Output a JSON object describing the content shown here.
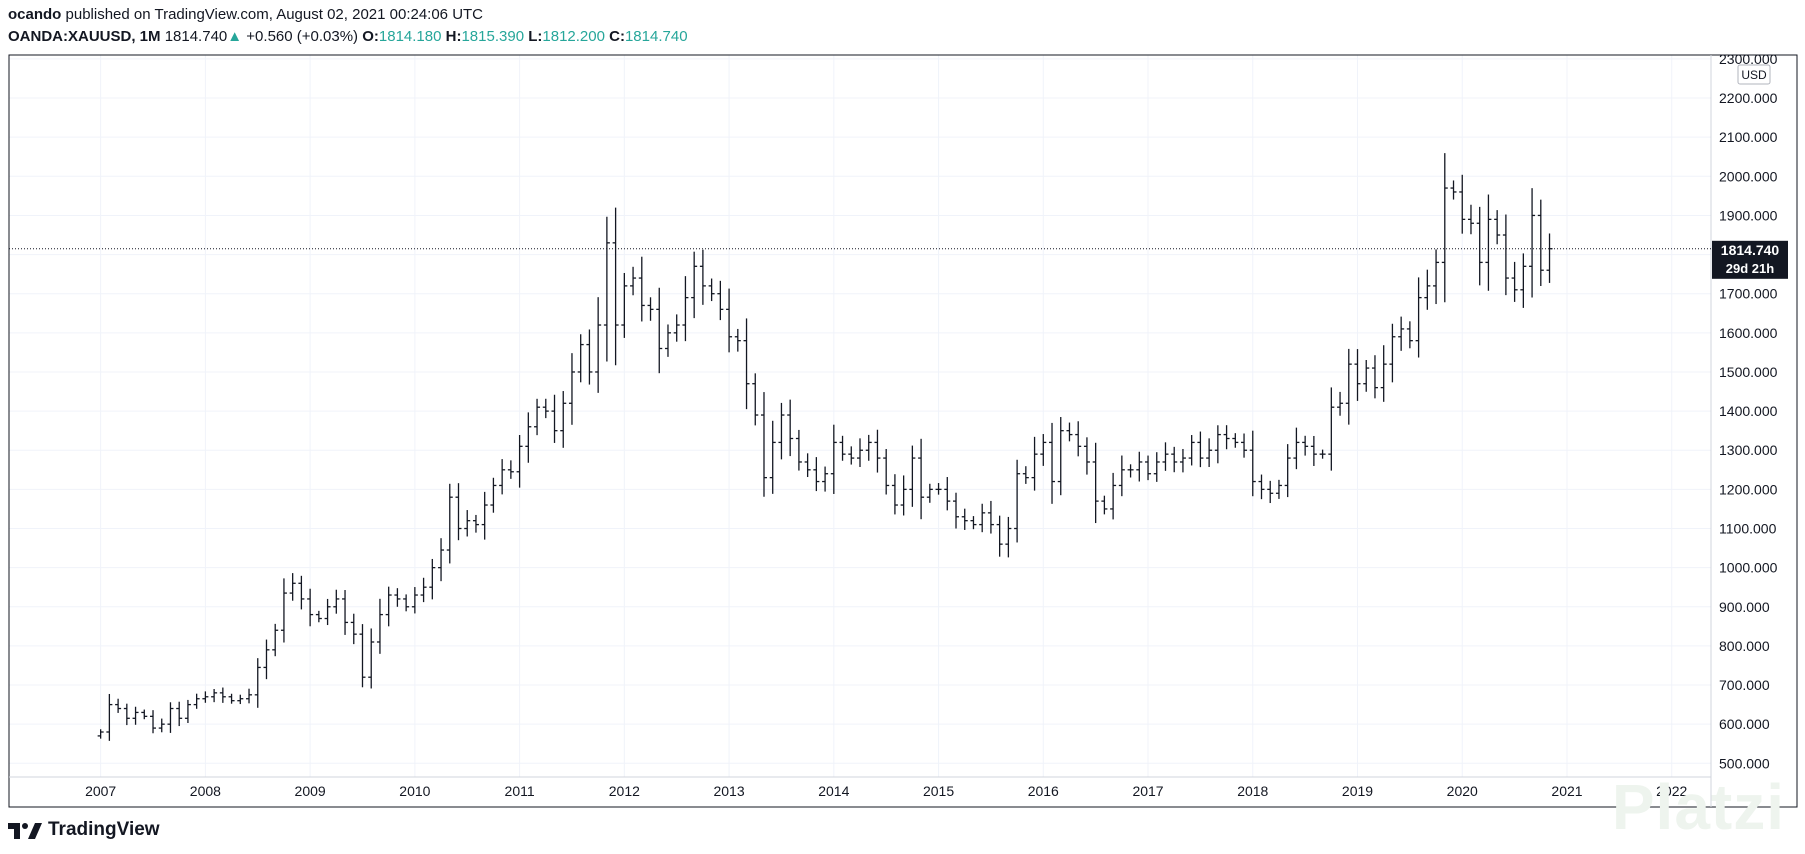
{
  "header": {
    "author": "ocando",
    "published": "published on TradingView.com, August 02, 2021 00:24:06 UTC",
    "symbol": "OANDA:XAUUSD, 1M",
    "last": "1814.740",
    "change_arrow": "▲",
    "change": "+0.560 (+0.03%)",
    "o_label": "O:",
    "o": "1814.180",
    "h_label": "H:",
    "h": "1815.390",
    "l_label": "L:",
    "l": "1812.200",
    "c_label": "C:",
    "c": "1814.740"
  },
  "currency_label": "USD",
  "last_price_label": "1814.740",
  "countdown_label": "29d 21h",
  "brand": "TradingView",
  "watermark": "Platzi",
  "colors": {
    "up": "#26a69a",
    "bar": "#131722",
    "grid": "#f0f3fa",
    "price_tag": "#131722"
  },
  "chart_data": {
    "type": "ohlc",
    "symbol": "OANDA:XAUUSD",
    "interval": "1M",
    "yticks": [
      500,
      600,
      700,
      800,
      900,
      1000,
      1100,
      1200,
      1300,
      1400,
      1500,
      1600,
      1700,
      1800,
      1900,
      2000,
      2100,
      2200,
      2300
    ],
    "ytick_labels": [
      "500.000",
      "600.000",
      "700.000",
      "800.000",
      "900.000",
      "1000.000",
      "1100.000",
      "1200.000",
      "1300.000",
      "1400.000",
      "1500.000",
      "1600.000",
      "1700.000",
      "1800.000",
      "1900.000",
      "2000.000",
      "2100.000",
      "2200.000",
      "2300.000"
    ],
    "xticks": [
      "2007",
      "2008",
      "2009",
      "2010",
      "2011",
      "2012",
      "2013",
      "2014",
      "2015",
      "2016",
      "2017",
      "2018",
      "2019",
      "2020",
      "2021",
      "2022"
    ],
    "ylim": [
      465,
      2310
    ],
    "xlim_months": [
      -10.5,
      184.5
    ],
    "last_price": 1814.74,
    "grid": true,
    "x_start": "2006-03",
    "close_path": [
      [
        0,
        580
      ],
      [
        1,
        650
      ],
      [
        2,
        640
      ],
      [
        3,
        615
      ],
      [
        4,
        630
      ],
      [
        5,
        620
      ],
      [
        6,
        590
      ],
      [
        7,
        600
      ],
      [
        8,
        640
      ],
      [
        9,
        615
      ],
      [
        10,
        650
      ],
      [
        11,
        665
      ],
      [
        12,
        670
      ],
      [
        13,
        680
      ],
      [
        14,
        670
      ],
      [
        15,
        660
      ],
      [
        16,
        665
      ],
      [
        17,
        675
      ],
      [
        18,
        745
      ],
      [
        19,
        790
      ],
      [
        20,
        840
      ],
      [
        21,
        935
      ],
      [
        22,
        960
      ],
      [
        23,
        920
      ],
      [
        24,
        880
      ],
      [
        25,
        870
      ],
      [
        26,
        900
      ],
      [
        27,
        920
      ],
      [
        28,
        860
      ],
      [
        29,
        830
      ],
      [
        30,
        720
      ],
      [
        31,
        810
      ],
      [
        32,
        880
      ],
      [
        33,
        930
      ],
      [
        34,
        920
      ],
      [
        35,
        900
      ],
      [
        36,
        930
      ],
      [
        37,
        950
      ],
      [
        38,
        1000
      ],
      [
        39,
        1045
      ],
      [
        40,
        1180
      ],
      [
        41,
        1100
      ],
      [
        42,
        1120
      ],
      [
        43,
        1110
      ],
      [
        44,
        1160
      ],
      [
        45,
        1210
      ],
      [
        46,
        1250
      ],
      [
        47,
        1245
      ],
      [
        48,
        1310
      ],
      [
        49,
        1360
      ],
      [
        50,
        1410
      ],
      [
        51,
        1400
      ],
      [
        52,
        1350
      ],
      [
        53,
        1420
      ],
      [
        54,
        1500
      ],
      [
        55,
        1570
      ],
      [
        56,
        1500
      ],
      [
        57,
        1620
      ],
      [
        58,
        1830
      ],
      [
        59,
        1620
      ],
      [
        60,
        1720
      ],
      [
        61,
        1740
      ],
      [
        62,
        1670
      ],
      [
        63,
        1660
      ],
      [
        64,
        1560
      ],
      [
        65,
        1600
      ],
      [
        66,
        1620
      ],
      [
        67,
        1690
      ],
      [
        68,
        1770
      ],
      [
        69,
        1720
      ],
      [
        70,
        1700
      ],
      [
        71,
        1660
      ],
      [
        72,
        1590
      ],
      [
        73,
        1580
      ],
      [
        74,
        1470
      ],
      [
        75,
        1390
      ],
      [
        76,
        1230
      ],
      [
        77,
        1320
      ],
      [
        78,
        1390
      ],
      [
        79,
        1330
      ],
      [
        80,
        1270
      ],
      [
        81,
        1250
      ],
      [
        82,
        1220
      ],
      [
        83,
        1240
      ],
      [
        84,
        1320
      ],
      [
        85,
        1290
      ],
      [
        86,
        1280
      ],
      [
        87,
        1300
      ],
      [
        88,
        1320
      ],
      [
        89,
        1280
      ],
      [
        90,
        1210
      ],
      [
        91,
        1160
      ],
      [
        92,
        1200
      ],
      [
        93,
        1280
      ],
      [
        94,
        1180
      ],
      [
        95,
        1200
      ],
      [
        96,
        1200
      ],
      [
        97,
        1170
      ],
      [
        98,
        1130
      ],
      [
        99,
        1120
      ],
      [
        100,
        1110
      ],
      [
        101,
        1140
      ],
      [
        102,
        1110
      ],
      [
        103,
        1060
      ],
      [
        104,
        1100
      ],
      [
        105,
        1240
      ],
      [
        106,
        1230
      ],
      [
        107,
        1290
      ],
      [
        108,
        1320
      ],
      [
        109,
        1220
      ],
      [
        110,
        1350
      ],
      [
        111,
        1340
      ],
      [
        112,
        1310
      ],
      [
        113,
        1270
      ],
      [
        114,
        1170
      ],
      [
        115,
        1150
      ],
      [
        116,
        1210
      ],
      [
        117,
        1250
      ],
      [
        118,
        1250
      ],
      [
        119,
        1270
      ],
      [
        120,
        1240
      ],
      [
        121,
        1270
      ],
      [
        122,
        1290
      ],
      [
        123,
        1270
      ],
      [
        124,
        1280
      ],
      [
        125,
        1320
      ],
      [
        126,
        1280
      ],
      [
        127,
        1300
      ],
      [
        128,
        1340
      ],
      [
        129,
        1330
      ],
      [
        130,
        1320
      ],
      [
        131,
        1300
      ],
      [
        132,
        1220
      ],
      [
        133,
        1200
      ],
      [
        134,
        1190
      ],
      [
        135,
        1210
      ],
      [
        136,
        1280
      ],
      [
        137,
        1320
      ],
      [
        138,
        1310
      ],
      [
        139,
        1290
      ],
      [
        140,
        1290
      ],
      [
        141,
        1410
      ],
      [
        142,
        1420
      ],
      [
        143,
        1520
      ],
      [
        144,
        1470
      ],
      [
        145,
        1510
      ],
      [
        146,
        1460
      ],
      [
        147,
        1520
      ],
      [
        148,
        1590
      ],
      [
        149,
        1610
      ],
      [
        150,
        1580
      ],
      [
        151,
        1690
      ],
      [
        152,
        1720
      ],
      [
        153,
        1780
      ],
      [
        154,
        1970
      ],
      [
        155,
        1960
      ],
      [
        156,
        1890
      ],
      [
        157,
        1880
      ],
      [
        158,
        1780
      ],
      [
        159,
        1890
      ],
      [
        160,
        1850
      ],
      [
        161,
        1740
      ],
      [
        162,
        1710
      ],
      [
        163,
        1770
      ],
      [
        164,
        1900
      ],
      [
        165,
        1760
      ],
      [
        166,
        1815
      ]
    ]
  }
}
